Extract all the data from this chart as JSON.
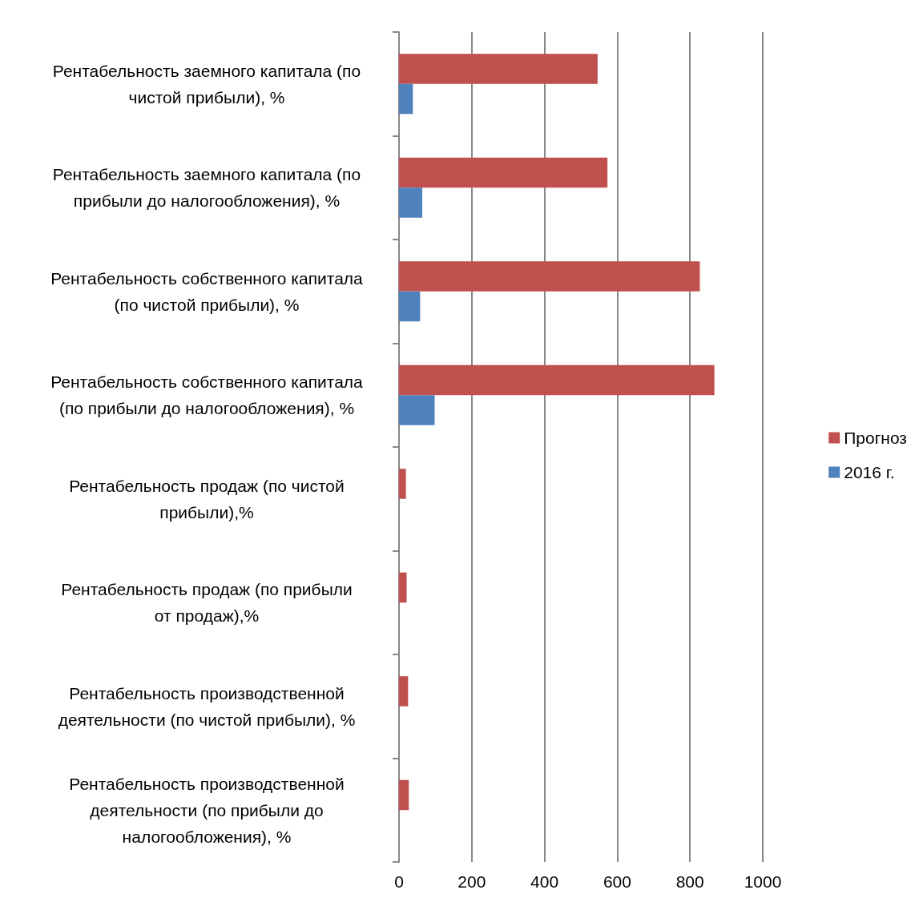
{
  "chart_data": {
    "type": "bar",
    "orientation": "horizontal",
    "categories": [
      "Рентабельность заемного капитала (по\nчистой прибыли), %",
      "Рентабельность заемного капитала (по\nприбыли до налогообложения), %",
      "Рентабельность собственного капитала\n(по чистой прибыли), %",
      "Рентабельность собственного капитала\n(по прибыли до налогообложения), %",
      "Рентабельность продаж (по чистой\nприбыли),%",
      "Рентабельность продаж (по прибыли\nот продаж),%",
      "Рентабельность производственной\nдеятельности (по чистой прибыли), %",
      "Рентабельность производственной\nдеятельности (по прибыли до\nналогообложения), %"
    ],
    "series": [
      {
        "name": "Прогноз",
        "color": "#c0504d",
        "values": [
          546,
          573,
          827,
          867,
          19,
          21,
          25,
          27
        ]
      },
      {
        "name": "2016 г.",
        "color": "#4f81bd",
        "values": [
          38,
          64,
          58,
          98,
          null,
          null,
          null,
          null
        ]
      }
    ],
    "xlim": [
      0,
      1000
    ],
    "xticks": [
      0,
      200,
      400,
      600,
      800,
      1000
    ],
    "grid": "x",
    "legend": "right"
  }
}
